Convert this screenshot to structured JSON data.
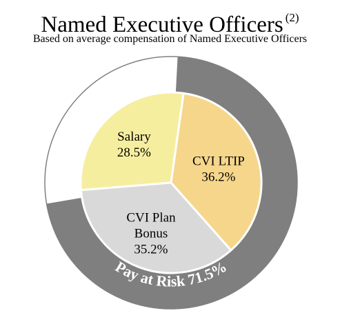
{
  "header": {
    "title": "Named Executive Officers",
    "footnote": "(2)",
    "subtitle": "Based on average compensation of Named Executive Officers"
  },
  "chart_data": {
    "type": "pie",
    "title": "Named Executive Officers",
    "subtitle": "Based on average compensation of Named Executive Officers",
    "slices": [
      {
        "label_lines": [
          "Salary",
          "28.5%"
        ],
        "value": 28.5,
        "color": "#f6ee9f"
      },
      {
        "label_lines": [
          "CVI LTIP",
          "36.2%"
        ],
        "value": 36.2,
        "color": "#f5d68b"
      },
      {
        "label_lines": [
          "CVI Plan",
          "Bonus",
          "35.2%"
        ],
        "value": 35.2,
        "color": "#d9d9d9"
      }
    ],
    "outer_ring": {
      "label": "Pay at Risk 71.5%",
      "value": 71.5,
      "ring_color": "#7f7f7f",
      "remainder_color": "#ffffff"
    },
    "slice_border_color": "#ffffff",
    "outline_color": "#7f7f7f"
  }
}
